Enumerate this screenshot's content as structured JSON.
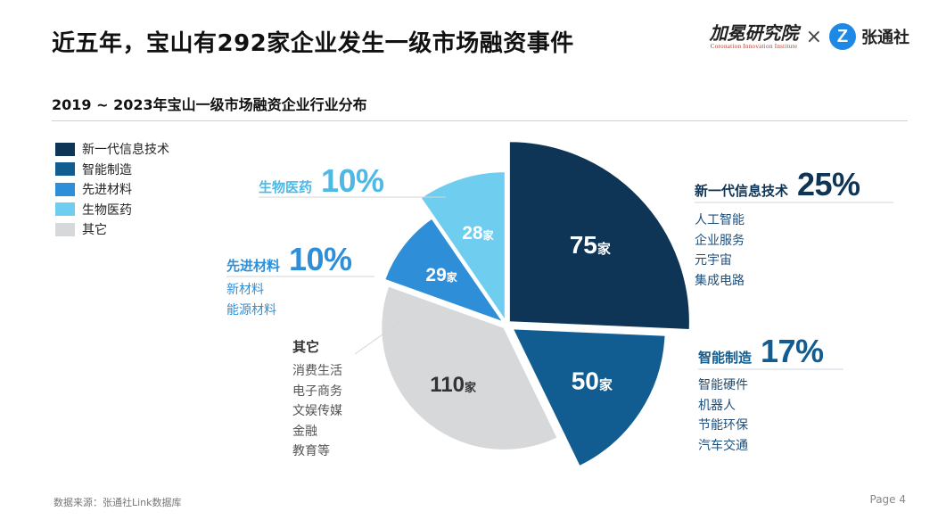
{
  "header": {
    "title": "近五年，宝山有292家企业发生一级市场融资事件",
    "brand_cn": "加冕研究院",
    "brand_en": "Coronation Innovation Institute",
    "brand_cross": "×",
    "brand_z_letter": "Z",
    "brand_z_name": "张通社"
  },
  "subtitle": "2019 ~ 2023年宝山一级市场融资企业行业分布",
  "unit": "家",
  "colors": {
    "new_it": "#0e3556",
    "smart_mfg": "#115d91",
    "adv_mat": "#2e8fd8",
    "bio": "#6fcdf0",
    "other": "#d7d8da",
    "pct_dark": "#0e3556",
    "pct_mid": "#115d91",
    "pct_light": "#2e8fd8",
    "pct_bio": "#4fb9e6"
  },
  "legend": [
    {
      "label": "新一代信息技术",
      "color": "#0e3556"
    },
    {
      "label": "智能制造",
      "color": "#115d91"
    },
    {
      "label": "先进材料",
      "color": "#2e8fd8"
    },
    {
      "label": "生物医药",
      "color": "#6fcdf0"
    },
    {
      "label": "其它",
      "color": "#d7d8da"
    }
  ],
  "chart_data": {
    "type": "pie",
    "title": "2019 ~ 2023年宝山一级市场融资企业行业分布",
    "unit": "家",
    "slices": [
      {
        "name": "新一代信息技术",
        "value": 75,
        "percent": "25%"
      },
      {
        "name": "智能制造",
        "value": 50,
        "percent": "17%"
      },
      {
        "name": "其它",
        "value": 110,
        "percent": ""
      },
      {
        "name": "先进材料",
        "value": 29,
        "percent": "10%"
      },
      {
        "name": "生物医药",
        "value": 28,
        "percent": "10%"
      }
    ]
  },
  "callouts": {
    "new_it": {
      "name": "新一代信息技术",
      "pct": "25%",
      "subs": [
        "人工智能",
        "企业服务",
        "元宇宙",
        "集成电路"
      ]
    },
    "smart_mfg": {
      "name": "智能制造",
      "pct": "17%",
      "subs": [
        "智能硬件",
        "机器人",
        "节能环保",
        "汽车交通"
      ]
    },
    "adv_mat": {
      "name": "先进材料",
      "pct": "10%",
      "subs": [
        "新材料",
        "能源材料"
      ]
    },
    "bio": {
      "name": "生物医药",
      "pct": "10%",
      "subs": []
    },
    "other": {
      "name": "其它",
      "pct": "",
      "subs": [
        "消费生活",
        "电子商务",
        "文娱传媒",
        "金融",
        "教育等"
      ]
    }
  },
  "footer": {
    "source": "数据来源：张通社Link数据库",
    "page": "Page 4"
  }
}
